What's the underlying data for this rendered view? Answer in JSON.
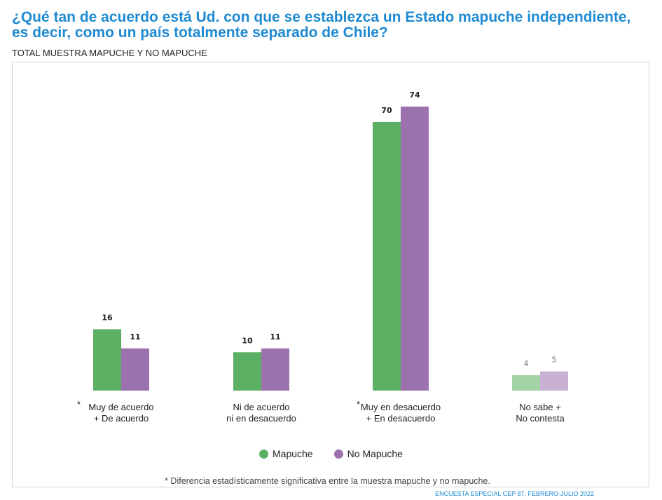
{
  "title": "¿Qué tan de acuerdo está Ud. con que se establezca un Estado mapuche independiente, es decir, como un país totalmente separado de Chile?",
  "subtitle": "TOTAL MUESTRA MAPUCHE Y NO MAPUCHE",
  "footnote": "* Diferencia estadísticamente significativa entre la muestra mapuche y no mapuche.",
  "source": "ENCUESTA ESPECIAL CEP 87, FEBRERO-JULIO 2022",
  "colors": {
    "mapuche": "#5cb063",
    "no_mapuche": "#9b72ad",
    "mapuche_light": "#a2d2a5",
    "no_mapuche_light": "#c8b1d3"
  },
  "chart_data": {
    "type": "bar",
    "categories": [
      "Muy de acuerdo\n+ De acuerdo",
      "Ni de acuerdo\nni en desacuerdo",
      "Muy en desacuerdo\n+ En desacuerdo",
      "No sabe +\nNo contesta"
    ],
    "category_markers": [
      "*",
      "",
      "*",
      ""
    ],
    "series": [
      {
        "name": "Mapuche",
        "values": [
          16,
          10,
          70,
          4
        ]
      },
      {
        "name": "No Mapuche",
        "values": [
          11,
          11,
          74,
          5
        ]
      }
    ],
    "ylim": [
      0,
      80
    ],
    "grid": false,
    "legend": "bottom"
  }
}
